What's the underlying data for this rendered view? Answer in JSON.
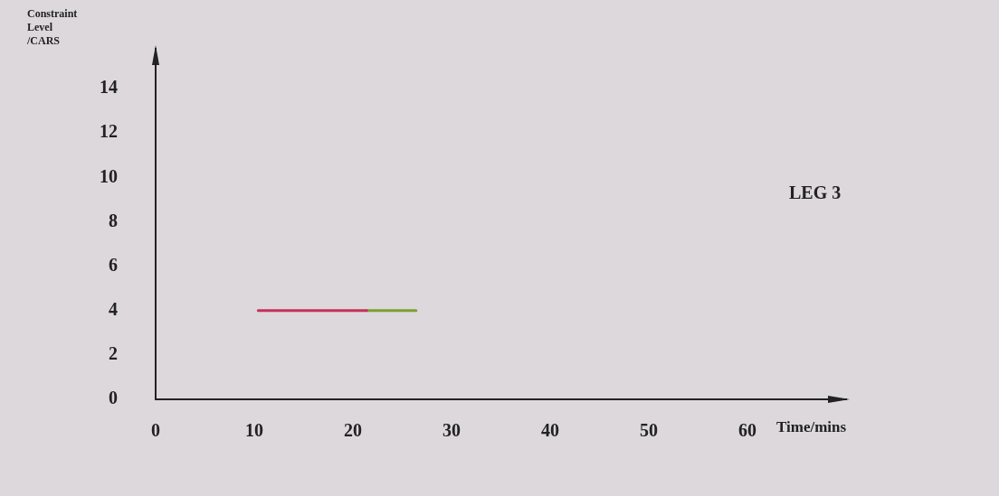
{
  "chart_data": {
    "type": "line",
    "xlabel": "Time/mins",
    "ylabel": "Constraint Level /CARS",
    "annotations": [
      "LEG 3"
    ],
    "xlim": [
      0,
      70
    ],
    "xticks": [
      0,
      10,
      20,
      30,
      40,
      50,
      60
    ],
    "ylim": [
      0,
      15.8
    ],
    "yticks": [
      0,
      2,
      4,
      6,
      8,
      10,
      12,
      14
    ],
    "marker": "none",
    "line_style": "solid",
    "series": [
      {
        "color": "#c8305a",
        "x": [
          10.4,
          21.4
        ],
        "values": [
          4,
          4
        ]
      },
      {
        "color": "#7aa030",
        "x": [
          21.4,
          26.4
        ],
        "values": [
          4,
          4
        ]
      }
    ]
  }
}
